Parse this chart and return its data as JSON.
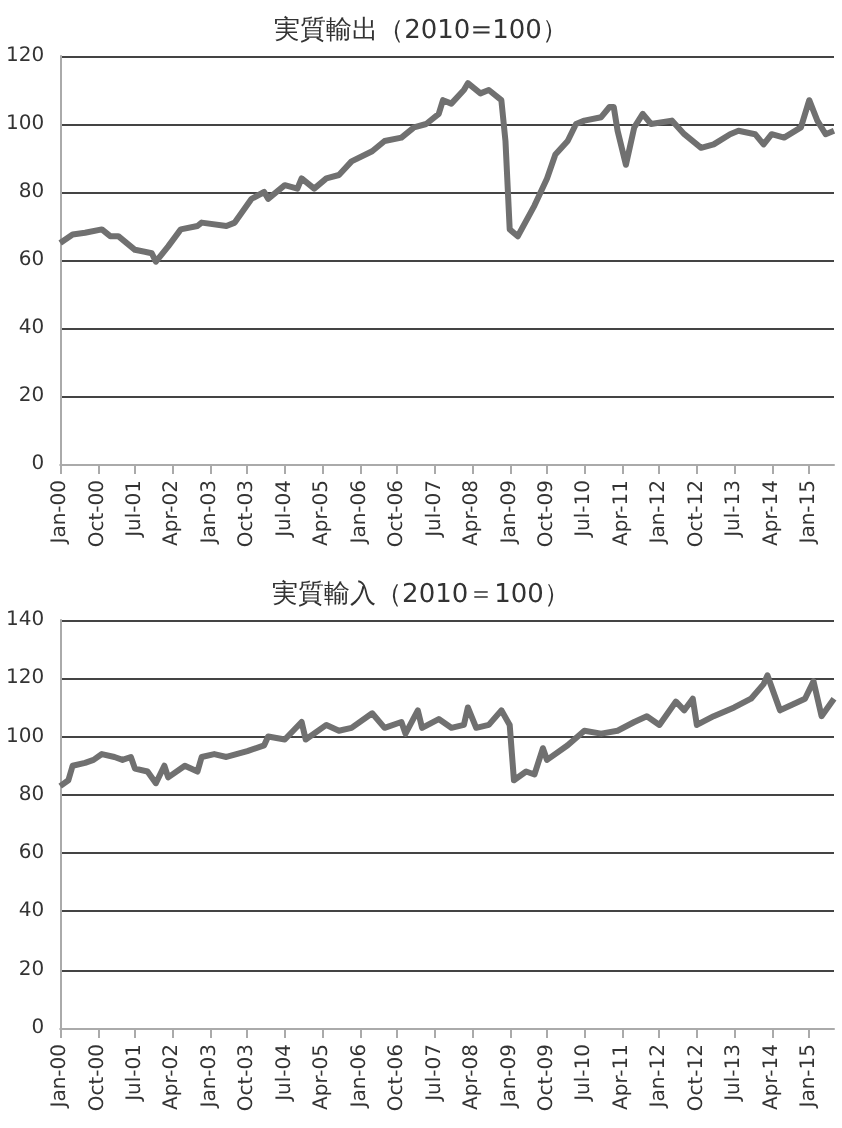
{
  "chart_data": [
    {
      "type": "line",
      "title": "実質輸出（2010=100）",
      "grid": "y",
      "marker": "none",
      "xlim": [
        "2000-01",
        "2015-07"
      ],
      "ylim": [
        0,
        120
      ],
      "yticks": [
        0,
        20,
        40,
        60,
        80,
        100,
        120
      ],
      "xticks": [
        {
          "value": "2000-01",
          "label": "Jan-00"
        },
        {
          "value": "2000-10",
          "label": "Oct-00"
        },
        {
          "value": "2001-07",
          "label": "Jul-01"
        },
        {
          "value": "2002-04",
          "label": "Apr-02"
        },
        {
          "value": "2003-01",
          "label": "Jan-03"
        },
        {
          "value": "2003-10",
          "label": "Oct-03"
        },
        {
          "value": "2004-07",
          "label": "Jul-04"
        },
        {
          "value": "2005-04",
          "label": "Apr-05"
        },
        {
          "value": "2006-01",
          "label": "Jan-06"
        },
        {
          "value": "2006-10",
          "label": "Oct-06"
        },
        {
          "value": "2007-07",
          "label": "Jul-07"
        },
        {
          "value": "2008-04",
          "label": "Apr-08"
        },
        {
          "value": "2009-01",
          "label": "Jan-09"
        },
        {
          "value": "2009-10",
          "label": "Oct-09"
        },
        {
          "value": "2010-07",
          "label": "Jul-10"
        },
        {
          "value": "2011-04",
          "label": "Apr-11"
        },
        {
          "value": "2012-01",
          "label": "Jan-12"
        },
        {
          "value": "2012-10",
          "label": "Oct-12"
        },
        {
          "value": "2013-07",
          "label": "Jul-13"
        },
        {
          "value": "2014-04",
          "label": "Apr-14"
        },
        {
          "value": "2015-01",
          "label": "Jan-15"
        }
      ],
      "series": [
        {
          "color": "#707070",
          "x": [
            "2000-01",
            "2000-04",
            "2000-07",
            "2000-11",
            "2001-01",
            "2001-03",
            "2001-07",
            "2001-11",
            "2001-12",
            "2002-03",
            "2002-06",
            "2002-10",
            "2002-11",
            "2003-05",
            "2003-07",
            "2003-11",
            "2004-02",
            "2004-03",
            "2004-07",
            "2004-10",
            "2004-11",
            "2005-02",
            "2005-05",
            "2005-08",
            "2005-11",
            "2006-04",
            "2006-07",
            "2006-11",
            "2007-02",
            "2007-05",
            "2007-08",
            "2007-09",
            "2007-11",
            "2008-02",
            "2008-03",
            "2008-06",
            "2008-08",
            "2008-11",
            "2008-12",
            "2009-01",
            "2009-03",
            "2009-07",
            "2009-10",
            "2009-12",
            "2010-03",
            "2010-05",
            "2010-07",
            "2010-11",
            "2011-01",
            "2011-02",
            "2011-03",
            "2011-05",
            "2011-07",
            "2011-09",
            "2011-11",
            "2012-04",
            "2012-07",
            "2012-11",
            "2013-02",
            "2013-06",
            "2013-08",
            "2013-12",
            "2014-02",
            "2014-04",
            "2014-07",
            "2014-11",
            "2015-01",
            "2015-03",
            "2015-05",
            "2015-07"
          ],
          "values": [
            65,
            67.5,
            68,
            69,
            67,
            67,
            63,
            62,
            59.5,
            64,
            69,
            70,
            71,
            70,
            71,
            78,
            80,
            78,
            82,
            81,
            84,
            81,
            84,
            85,
            89,
            92,
            95,
            96,
            99,
            100,
            103,
            107,
            106,
            110,
            112,
            109,
            110,
            107,
            95,
            69,
            67,
            76,
            84,
            91,
            95,
            100,
            101,
            102,
            105,
            105,
            98,
            88,
            99,
            103,
            100,
            101,
            97,
            93,
            94,
            97,
            98,
            97,
            94,
            97,
            96,
            99,
            107,
            101,
            97,
            98
          ]
        }
      ]
    },
    {
      "type": "line",
      "title": "実質輸入（2010＝100）",
      "grid": "y",
      "marker": "none",
      "xlim": [
        "2000-01",
        "2015-07"
      ],
      "ylim": [
        0,
        140
      ],
      "yticks": [
        0,
        20,
        40,
        60,
        80,
        100,
        120,
        140
      ],
      "xticks": [
        {
          "value": "2000-01",
          "label": "Jan-00"
        },
        {
          "value": "2000-10",
          "label": "Oct-00"
        },
        {
          "value": "2001-07",
          "label": "Jul-01"
        },
        {
          "value": "2002-04",
          "label": "Apr-02"
        },
        {
          "value": "2003-01",
          "label": "Jan-03"
        },
        {
          "value": "2003-10",
          "label": "Oct-03"
        },
        {
          "value": "2004-07",
          "label": "Jul-04"
        },
        {
          "value": "2005-04",
          "label": "Apr-05"
        },
        {
          "value": "2006-01",
          "label": "Jan-06"
        },
        {
          "value": "2006-10",
          "label": "Oct-06"
        },
        {
          "value": "2007-07",
          "label": "Jul-07"
        },
        {
          "value": "2008-04",
          "label": "Apr-08"
        },
        {
          "value": "2009-01",
          "label": "Jan-09"
        },
        {
          "value": "2009-10",
          "label": "Oct-09"
        },
        {
          "value": "2010-07",
          "label": "Jul-10"
        },
        {
          "value": "2011-04",
          "label": "Apr-11"
        },
        {
          "value": "2012-01",
          "label": "Jan-12"
        },
        {
          "value": "2012-10",
          "label": "Oct-12"
        },
        {
          "value": "2013-07",
          "label": "Jul-13"
        },
        {
          "value": "2014-04",
          "label": "Apr-14"
        },
        {
          "value": "2015-01",
          "label": "Jan-15"
        }
      ],
      "series": [
        {
          "color": "#707070",
          "x": [
            "2000-01",
            "2000-03",
            "2000-04",
            "2000-07",
            "2000-09",
            "2000-11",
            "2001-02",
            "2001-04",
            "2001-06",
            "2001-07",
            "2001-10",
            "2001-12",
            "2002-02",
            "2002-03",
            "2002-07",
            "2002-10",
            "2002-11",
            "2003-02",
            "2003-05",
            "2003-10",
            "2004-02",
            "2004-03",
            "2004-07",
            "2004-11",
            "2004-12",
            "2005-05",
            "2005-08",
            "2005-11",
            "2006-04",
            "2006-07",
            "2006-11",
            "2006-12",
            "2007-03",
            "2007-04",
            "2007-08",
            "2007-11",
            "2008-02",
            "2008-03",
            "2008-05",
            "2008-08",
            "2008-11",
            "2009-01",
            "2009-02",
            "2009-05",
            "2009-07",
            "2009-09",
            "2009-10",
            "2010-03",
            "2010-07",
            "2010-11",
            "2011-03",
            "2011-07",
            "2011-10",
            "2012-01",
            "2012-05",
            "2012-07",
            "2012-09",
            "2012-10",
            "2013-02",
            "2013-07",
            "2013-11",
            "2014-02",
            "2014-03",
            "2014-06",
            "2014-09",
            "2014-12",
            "2015-02",
            "2015-04",
            "2015-06",
            "2015-07"
          ],
          "values": [
            83,
            85,
            90,
            91,
            92,
            94,
            93,
            92,
            93,
            89,
            88,
            84,
            90,
            86,
            90,
            88,
            93,
            94,
            93,
            95,
            97,
            100,
            99,
            105,
            99,
            104,
            102,
            103,
            108,
            103,
            105,
            101,
            109,
            103,
            106,
            103,
            104,
            110,
            103,
            104,
            109,
            104,
            85,
            88,
            87,
            96,
            92,
            97,
            102,
            101,
            102,
            105,
            107,
            104,
            112,
            109,
            113,
            104,
            107,
            110,
            113,
            118,
            121,
            109,
            111,
            113,
            119,
            107,
            111,
            113
          ]
        }
      ]
    }
  ]
}
